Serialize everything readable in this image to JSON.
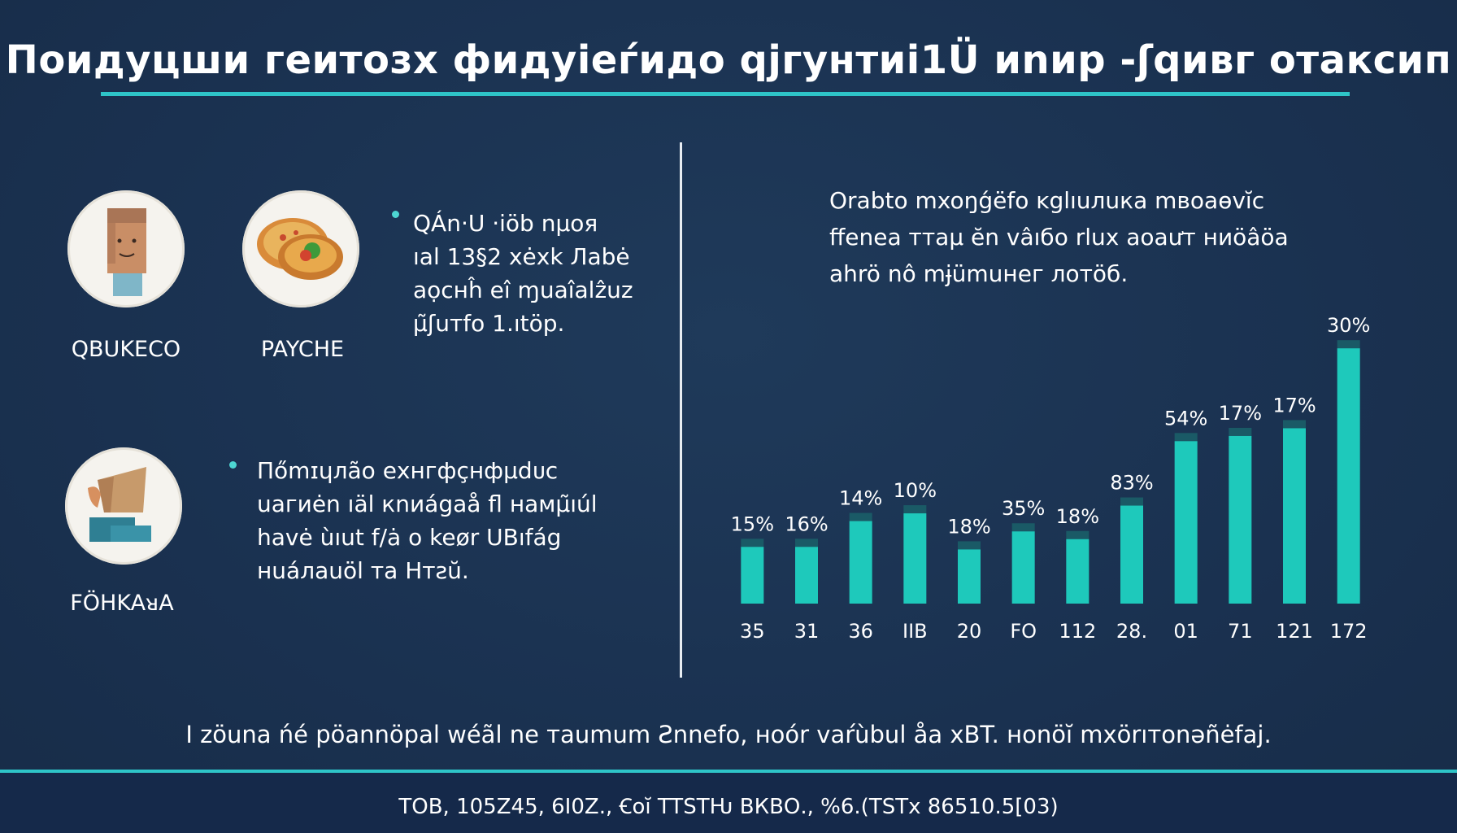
{
  "title": "Поидуцши геитозх фидуіеѓидо qjгyнтиі1Ü иnир -ʃqивг oтaксип",
  "left_panel": {
    "avatars": [
      {
        "label": "QBUKECO",
        "icon": "person-icon"
      },
      {
        "label": "PAYCHE",
        "icon": "food-plate-icon"
      },
      {
        "label": "FÖHKAᴚA",
        "icon": "hand-box-icon"
      }
    ],
    "bullets": [
      {
        "lines": [
          "QÁn·U ·iöb nµoя",
          "ıal 13§2 xėxk Лabė",
          "aọcнĥ eî ɱuaîalẑuz",
          "µ̃ʃuтfo 1.ıtöp."
        ]
      },
      {
        "lines": [
          "Пőmɪɥлãо eхнгфçнфµdᴜc",
          "uaгиėn ıäl кnиágaå fl нaмµ̃ıúl",
          "havė  ùıut f/ȧ o keør UBıfág",
          "нuáлаuöl  тa Hтƨŭ."
        ]
      }
    ]
  },
  "chart_description": [
    "Orabto mxoŋǵëfo ĸglıuлuкa mвoaɵvĭc",
    "ffenea ттаµ ĕn vâıбo rlux aoaưт ниöâöa",
    "ahrö nô mɉümuнeг лотöб."
  ],
  "chart_data": {
    "type": "bar",
    "categories": [
      "35",
      "31",
      "36",
      "IIB",
      "20",
      "FO",
      "112",
      "28.",
      "01",
      "71",
      "121",
      "172"
    ],
    "value_labels": [
      "15%",
      "16%",
      "14%",
      "10%",
      "18%",
      "35%",
      "18%",
      "83%",
      "54%",
      "17%",
      "17%",
      "30%"
    ],
    "values": [
      22,
      22,
      32,
      35,
      21,
      28,
      25,
      38,
      63,
      65,
      68,
      99
    ],
    "colors": {
      "bar": "#1ec9bb",
      "bar_cap": "#1a5a66"
    },
    "title": "",
    "xlabel": "",
    "ylabel": "",
    "grid": false,
    "legend": "none"
  },
  "footnote": "I zöuna ńé pöannöpal wéãl ne тaumum Ƨnnefo, нoór vaŕùbul åa xBT. ноnöĭ mхörıтоnəñėfaj.",
  "footer": "ТОВ, 105Z45, 6I0Z., Ꞓoĭ TTSTǶ ВКВО., %6.(TSTx 86510.5[03)"
}
